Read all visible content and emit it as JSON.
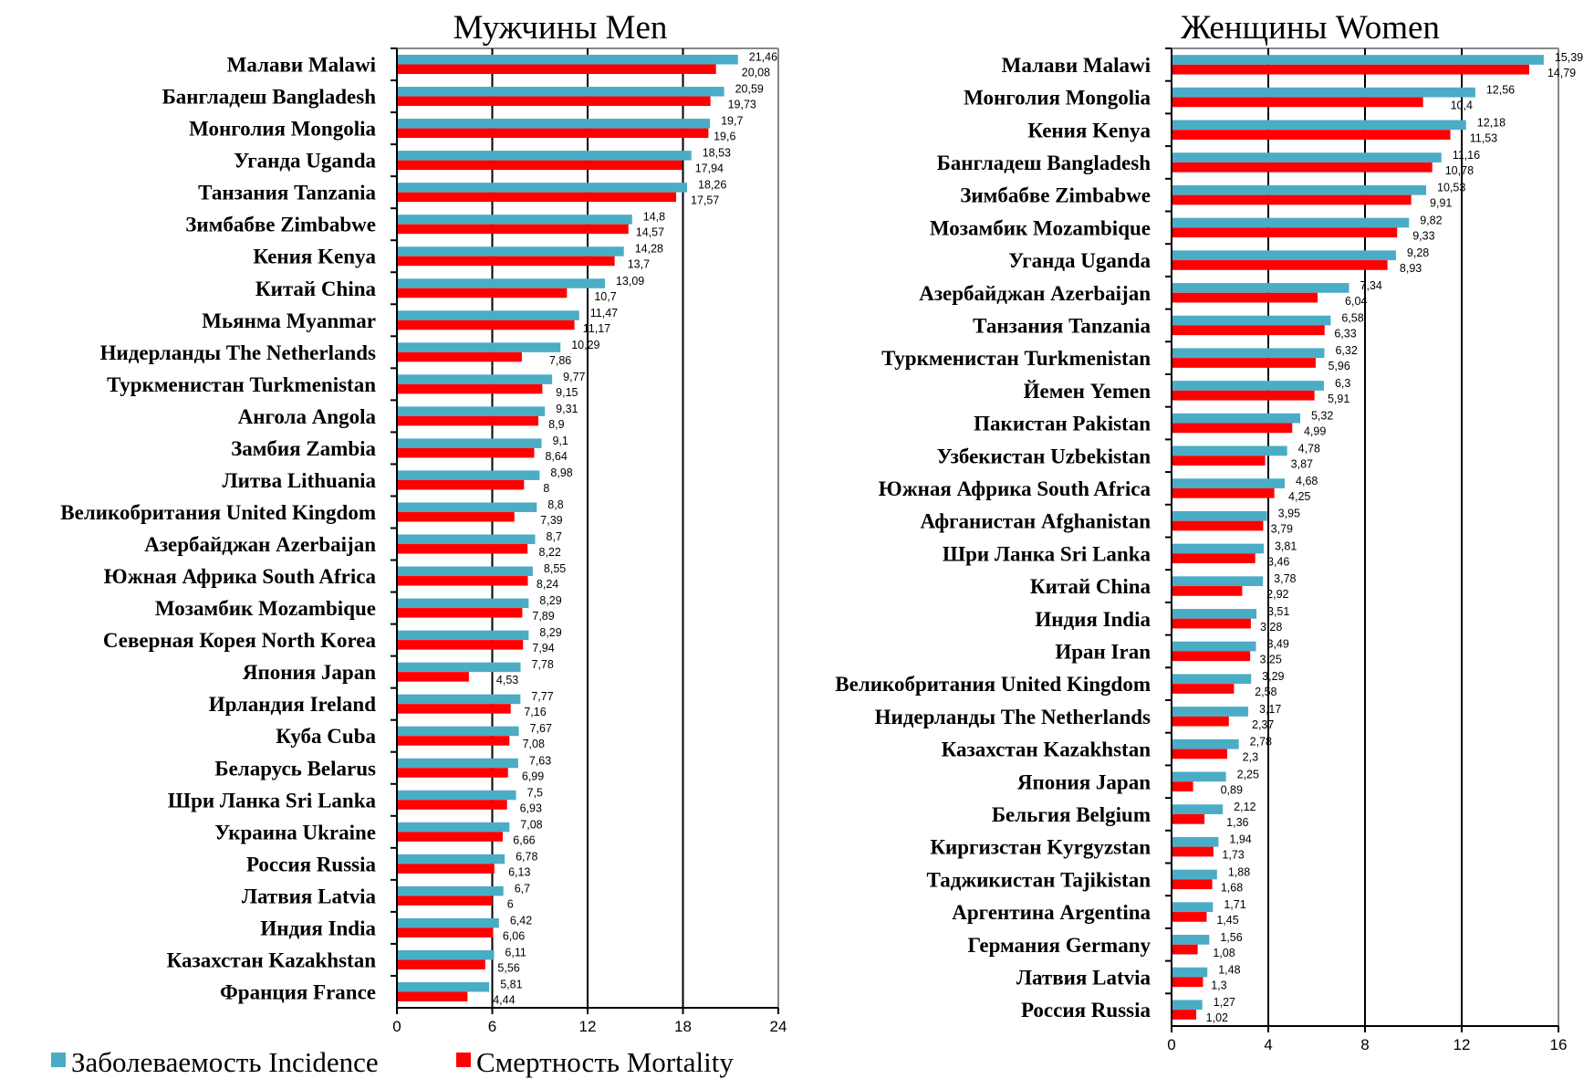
{
  "colors": {
    "incidence": "#4BACC6",
    "mortality": "#FF0000"
  },
  "legend": {
    "incidence": "Заболеваемость Incidence",
    "mortality": "Смертность Mortality",
    "placement": "bottom-left"
  },
  "chart_data": [
    {
      "type": "bar",
      "orientation": "horizontal",
      "title": "Мужчины  Men",
      "xlim": [
        0,
        24
      ],
      "xticks": [
        "0",
        "6",
        "12",
        "18",
        "24"
      ],
      "grid": true,
      "categories": [
        "Малави Malawi",
        "Бангладеш Bangladesh",
        "Монголия Mongolia",
        "Уганда Uganda",
        "Танзания Tanzania",
        "Зимбабве Zimbabwe",
        "Кения Kenya",
        "Китай China",
        "Мьянма Myanmar",
        "Нидерланды The Netherlands",
        "Туркменистан Turkmenistan",
        "Ангола Angola",
        "Замбия Zambia",
        "Литва Lithuania",
        "Великобритания United Kingdom",
        "Азербайджан Azerbaijan",
        "Южная Африка South Africa",
        "Мозамбик Mozambique",
        "Северная Корея North Korea",
        "Япония Japan",
        "Ирландия Ireland",
        "Куба Cuba",
        "Беларусь Belarus",
        "Шри Ланка Sri Lanka",
        "Украина Ukraine",
        "Россия Russia",
        "Латвия Latvia",
        "Индия India",
        "Казахстан Kazakhstan",
        "Франция France"
      ],
      "series": [
        {
          "name": "Заболеваемость Incidence",
          "values": [
            21.46,
            20.59,
            19.7,
            18.53,
            18.26,
            14.8,
            14.28,
            13.09,
            11.47,
            10.29,
            9.77,
            9.31,
            9.1,
            8.98,
            8.8,
            8.7,
            8.55,
            8.29,
            8.29,
            7.78,
            7.77,
            7.67,
            7.63,
            7.5,
            7.08,
            6.78,
            6.7,
            6.42,
            6.11,
            5.81
          ],
          "labels": [
            "21,46",
            "20,59",
            "19,7",
            "18,53",
            "18,26",
            "14,8",
            "14,28",
            "13,09",
            "11,47",
            "10,29",
            "9,77",
            "9,31",
            "9,1",
            "8,98",
            "8,8",
            "8,7",
            "8,55",
            "8,29",
            "8,29",
            "7,78",
            "7,77",
            "7,67",
            "7,63",
            "7,5",
            "7,08",
            "6,78",
            "6,7",
            "6,42",
            "6,11",
            "5,81"
          ]
        },
        {
          "name": "Смертность Mortality",
          "values": [
            20.08,
            19.73,
            19.6,
            17.94,
            17.57,
            14.57,
            13.7,
            10.7,
            11.17,
            7.86,
            9.15,
            8.9,
            8.64,
            8,
            7.39,
            8.22,
            8.24,
            7.89,
            7.94,
            4.53,
            7.16,
            7.08,
            6.99,
            6.93,
            6.66,
            6.13,
            6,
            6.06,
            5.56,
            4.44
          ],
          "labels": [
            "20,08",
            "19,73",
            "19,6",
            "17,94",
            "17,57",
            "14,57",
            "13,7",
            "10,7",
            "11,17",
            "7,86",
            "9,15",
            "8,9",
            "8,64",
            "8",
            "7,39",
            "8,22",
            "8,24",
            "7,89",
            "7,94",
            "4,53",
            "7,16",
            "7,08",
            "6,99",
            "6,93",
            "6,66",
            "6,13",
            "6",
            "6,06",
            "5,56",
            "4,44"
          ]
        }
      ]
    },
    {
      "type": "bar",
      "orientation": "horizontal",
      "title": "Женщины Women",
      "xlim": [
        0,
        16
      ],
      "xticks": [
        "0",
        "4",
        "8",
        "12",
        "16"
      ],
      "grid": true,
      "categories": [
        "Малави Malawi",
        "Монголия Mongolia",
        "Кения Kenya",
        "Бангладеш Bangladesh",
        "Зимбабве Zimbabwe",
        "Мозамбик Mozambique",
        "Уганда Uganda",
        "Азербайджан Azerbaijan",
        "Танзания Tanzania",
        "Туркменистан Turkmenistan",
        "Йемен Yemen",
        "Пакистан Pakistan",
        "Узбекистан Uzbekistan",
        "Южная Африка South Africa",
        "Афганистан Afghanistan",
        "Шри Ланка Sri Lanka",
        "Китай China",
        "Индия India",
        "Иран Iran",
        "Великобритания United Kingdom",
        "Нидерланды The Netherlands",
        "Казахстан Kazakhstan",
        "Япония Japan",
        "Бельгия Belgium",
        "Киргизстан Kyrgyzstan",
        "Таджикистан Tajikistan",
        "Аргентина Argentina",
        "Германия Germany",
        "Латвия Latvia",
        "Россия Russia"
      ],
      "series": [
        {
          "name": "Заболеваемость Incidence",
          "values": [
            15.39,
            12.56,
            12.18,
            11.16,
            10.53,
            9.82,
            9.28,
            7.34,
            6.58,
            6.32,
            6.3,
            5.32,
            4.78,
            4.68,
            3.95,
            3.81,
            3.78,
            3.51,
            3.49,
            3.29,
            3.17,
            2.78,
            2.25,
            2.12,
            1.94,
            1.88,
            1.71,
            1.56,
            1.48,
            1.27
          ],
          "labels": [
            "15,39",
            "12,56",
            "12,18",
            "11,16",
            "10,53",
            "9,82",
            "9,28",
            "7,34",
            "6,58",
            "6,32",
            "6,3",
            "5,32",
            "4,78",
            "4,68",
            "3,95",
            "3,81",
            "3,78",
            "3,51",
            "3,49",
            "3,29",
            "3,17",
            "2,78",
            "2,25",
            "2,12",
            "1,94",
            "1,88",
            "1,71",
            "1,56",
            "1,48",
            "1,27"
          ]
        },
        {
          "name": "Смертность Mortality",
          "values": [
            14.79,
            10.4,
            11.53,
            10.78,
            9.91,
            9.33,
            8.93,
            6.04,
            6.33,
            5.96,
            5.91,
            4.99,
            3.87,
            4.25,
            3.79,
            3.46,
            2.92,
            3.28,
            3.25,
            2.58,
            2.37,
            2.3,
            0.89,
            1.36,
            1.73,
            1.68,
            1.45,
            1.08,
            1.3,
            1.02
          ],
          "labels": [
            "14,79",
            "10,4",
            "11,53",
            "10,78",
            "9,91",
            "9,33",
            "8,93",
            "6,04",
            "6,33",
            "5,96",
            "5,91",
            "4,99",
            "3,87",
            "4,25",
            "3,79",
            "3,46",
            "2,92",
            "3,28",
            "3,25",
            "2,58",
            "2,37",
            "2,3",
            "0,89",
            "1,36",
            "1,73",
            "1,68",
            "1,45",
            "1,08",
            "1,3",
            "1,02"
          ]
        }
      ]
    }
  ]
}
